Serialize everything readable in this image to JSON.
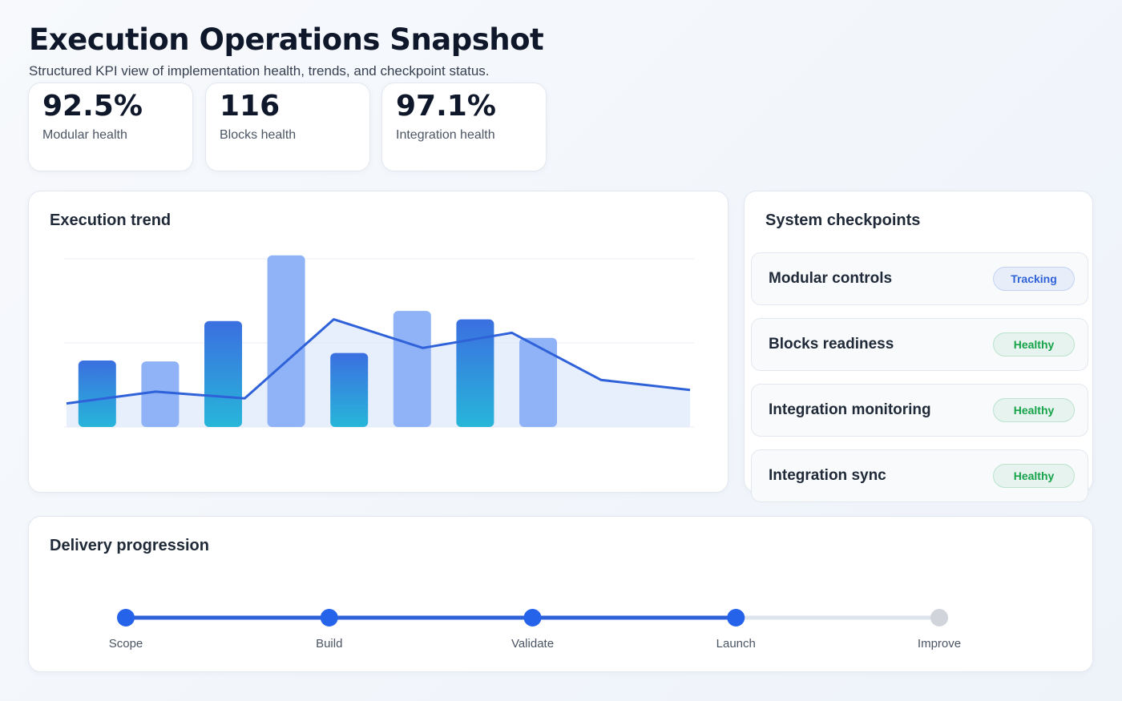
{
  "header": {
    "title": "Execution Operations Snapshot",
    "subtitle": "Structured KPI view of implementation health, trends, and checkpoint status."
  },
  "kpis": [
    {
      "value": "92.5%",
      "label": "Modular health"
    },
    {
      "value": "116",
      "label": "Blocks health"
    },
    {
      "value": "97.1%",
      "label": "Integration health"
    }
  ],
  "trend": {
    "title": "Execution trend",
    "chart_data": {
      "type": "bar-line",
      "bars": [
        39.5,
        39,
        63,
        102,
        44,
        69,
        64,
        53
      ],
      "bar_styles": [
        "gradient",
        "light",
        "gradient",
        "light",
        "gradient",
        "light",
        "gradient",
        "light"
      ],
      "line": [
        14,
        21,
        17,
        64,
        47,
        56,
        28,
        22
      ],
      "line_color": "#2f62d9",
      "light_color": "#8fb3f6",
      "ylim": [
        0,
        105
      ],
      "yticks": [
        0,
        50,
        100
      ],
      "grid": true
    }
  },
  "checkpoints": {
    "title": "System checkpoints",
    "items": [
      {
        "name": "Modular controls",
        "status": "Tracking",
        "color": "#2f62d9"
      },
      {
        "name": "Blocks readiness",
        "status": "Healthy",
        "color": "#16a34a"
      },
      {
        "name": "Integration monitoring",
        "status": "Healthy",
        "color": "#16a34a"
      },
      {
        "name": "Integration sync",
        "status": "Healthy",
        "color": "#16a34a"
      }
    ]
  },
  "delivery": {
    "title": "Delivery progression",
    "steps": [
      "Scope",
      "Build",
      "Validate",
      "Launch",
      "Improve"
    ],
    "completed_steps": 4
  }
}
